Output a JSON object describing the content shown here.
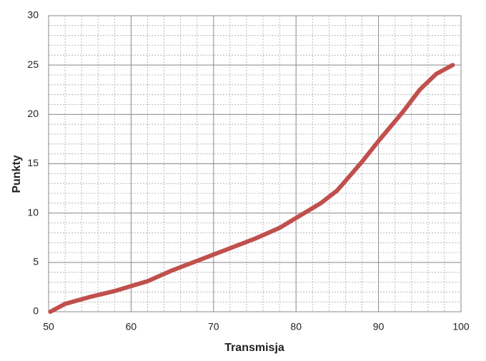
{
  "chart_data": {
    "type": "line",
    "x_label": "Transmisja",
    "y_label": "Punkty",
    "xlim": [
      50,
      100
    ],
    "xticks": [
      50,
      60,
      70,
      80,
      90,
      100
    ],
    "ylim": [
      0,
      30
    ],
    "yticks": [
      0,
      5,
      10,
      15,
      20,
      25,
      30
    ],
    "grid": true,
    "minor_grid": true,
    "series": [
      {
        "name": "Punkty",
        "color": "#c0504d",
        "x": [
          50.2,
          52,
          55,
          58,
          60,
          62,
          65,
          70,
          75,
          78,
          80,
          83,
          85,
          88,
          90,
          93,
          95,
          97,
          99
        ],
        "values": [
          0,
          0.8,
          1.5,
          2.1,
          2.6,
          3.1,
          4.2,
          5.8,
          7.4,
          8.5,
          9.5,
          11,
          12.3,
          15.2,
          17.3,
          20.3,
          22.5,
          24.1,
          25
        ]
      }
    ]
  }
}
